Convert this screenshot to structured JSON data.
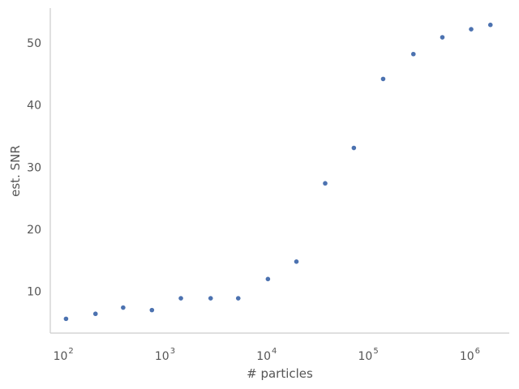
{
  "chart_data": {
    "type": "scatter",
    "title": "",
    "xlabel": "# particles",
    "ylabel": "est. SNR",
    "x_scale": "log",
    "xlim": [
      70,
      2300000
    ],
    "ylim": [
      3.3,
      55.6
    ],
    "grid": false,
    "color": "#4c72b0",
    "x_ticks": [
      {
        "base": "10",
        "exp": "2",
        "value": 100
      },
      {
        "base": "10",
        "exp": "3",
        "value": 1000
      },
      {
        "base": "10",
        "exp": "4",
        "value": 10000
      },
      {
        "base": "10",
        "exp": "5",
        "value": 100000
      },
      {
        "base": "10",
        "exp": "6",
        "value": 1000000
      }
    ],
    "y_ticks": [
      {
        "label": "10",
        "value": 10
      },
      {
        "label": "20",
        "value": 20
      },
      {
        "label": "30",
        "value": 30
      },
      {
        "label": "40",
        "value": 40
      },
      {
        "label": "50",
        "value": 50
      }
    ],
    "points": [
      {
        "x": 100,
        "y": 5.6
      },
      {
        "x": 195,
        "y": 6.4
      },
      {
        "x": 365,
        "y": 7.4
      },
      {
        "x": 700,
        "y": 7.0
      },
      {
        "x": 1350,
        "y": 8.9
      },
      {
        "x": 2650,
        "y": 8.9
      },
      {
        "x": 4950,
        "y": 8.9
      },
      {
        "x": 9700,
        "y": 12.0
      },
      {
        "x": 18500,
        "y": 14.8
      },
      {
        "x": 35500,
        "y": 27.4
      },
      {
        "x": 68000,
        "y": 33.1
      },
      {
        "x": 132000,
        "y": 44.2
      },
      {
        "x": 262000,
        "y": 48.2
      },
      {
        "x": 505000,
        "y": 50.9
      },
      {
        "x": 970000,
        "y": 52.2
      },
      {
        "x": 1500000,
        "y": 52.9
      }
    ]
  }
}
